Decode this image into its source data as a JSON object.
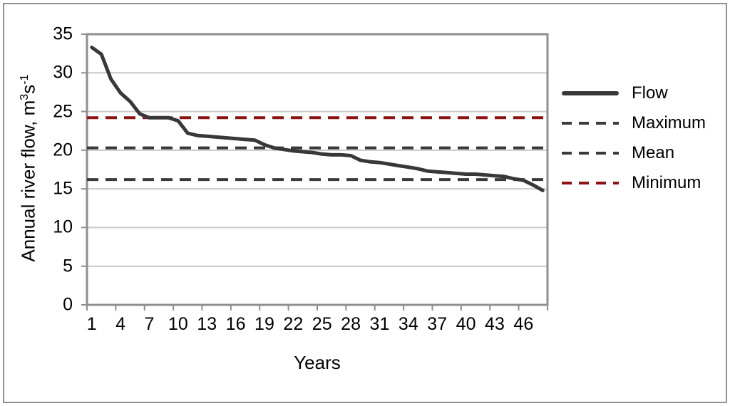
{
  "chart_data": {
    "type": "line",
    "title": "",
    "xlabel": "Years",
    "ylabel": "Annual river flow, m3s-1",
    "ylabel_parts": {
      "prefix": "Annual river flow, m",
      "sup1": "3",
      "mid": "s",
      "sup2": "-1"
    },
    "ylim": [
      0,
      35
    ],
    "ytick_step": 5,
    "yticks": [
      "35",
      "30",
      "25",
      "20",
      "15",
      "10",
      "5",
      "0"
    ],
    "xtick_labels": [
      "1",
      "4",
      "7",
      "10",
      "13",
      "16",
      "19",
      "22",
      "25",
      "28",
      "31",
      "34",
      "37",
      "40",
      "43",
      "46"
    ],
    "x_categories_count": 48,
    "x_label_every": 3,
    "grid": true,
    "legend_position": "right",
    "axis_color": "#8f8f8f",
    "gridline_color": "#c9c9c9",
    "series": [
      {
        "name": "Flow",
        "kind": "line",
        "color": "#383838",
        "stroke_width": 5,
        "x": [
          1,
          2,
          3,
          4,
          5,
          6,
          7,
          8,
          9,
          10,
          11,
          12,
          13,
          14,
          15,
          16,
          17,
          18,
          19,
          20,
          21,
          22,
          23,
          24,
          25,
          26,
          27,
          28,
          29,
          30,
          31,
          32,
          33,
          34,
          35,
          36,
          37,
          38,
          39,
          40,
          41,
          42,
          43,
          44,
          45,
          46,
          47,
          48
        ],
        "values": [
          33.3,
          32.4,
          29.2,
          27.4,
          26.3,
          24.7,
          24.2,
          24.2,
          24.2,
          23.8,
          22.2,
          21.9,
          21.8,
          21.7,
          21.6,
          21.5,
          21.4,
          21.3,
          20.7,
          20.3,
          20.1,
          19.9,
          19.8,
          19.7,
          19.5,
          19.4,
          19.4,
          19.3,
          18.7,
          18.5,
          18.4,
          18.2,
          18.0,
          17.8,
          17.6,
          17.3,
          17.2,
          17.1,
          17.0,
          16.9,
          16.9,
          16.8,
          16.7,
          16.6,
          16.3,
          16.1,
          15.5,
          14.8
        ]
      },
      {
        "name": "Maximum",
        "kind": "hline",
        "value": 16.2,
        "color": "#3a3a3a",
        "stroke_width": 4,
        "dash": [
          16,
          10
        ]
      },
      {
        "name": "Mean",
        "kind": "hline",
        "value": 20.3,
        "color": "#3a3a3a",
        "stroke_width": 4,
        "dash": [
          16,
          10
        ]
      },
      {
        "name": "Minimum",
        "kind": "hline",
        "value": 24.2,
        "color": "#8e1212",
        "stroke_width": 4,
        "dash": [
          16,
          10
        ]
      }
    ]
  },
  "legend": {
    "items": [
      {
        "label": "Flow",
        "style": "solid",
        "color": "#383838"
      },
      {
        "label": "Maximum",
        "style": "dashed",
        "color": "#3a3a3a"
      },
      {
        "label": "Mean",
        "style": "dashed",
        "color": "#3a3a3a"
      },
      {
        "label": "Minimum",
        "style": "dashed",
        "color": "#8e1212"
      }
    ]
  }
}
